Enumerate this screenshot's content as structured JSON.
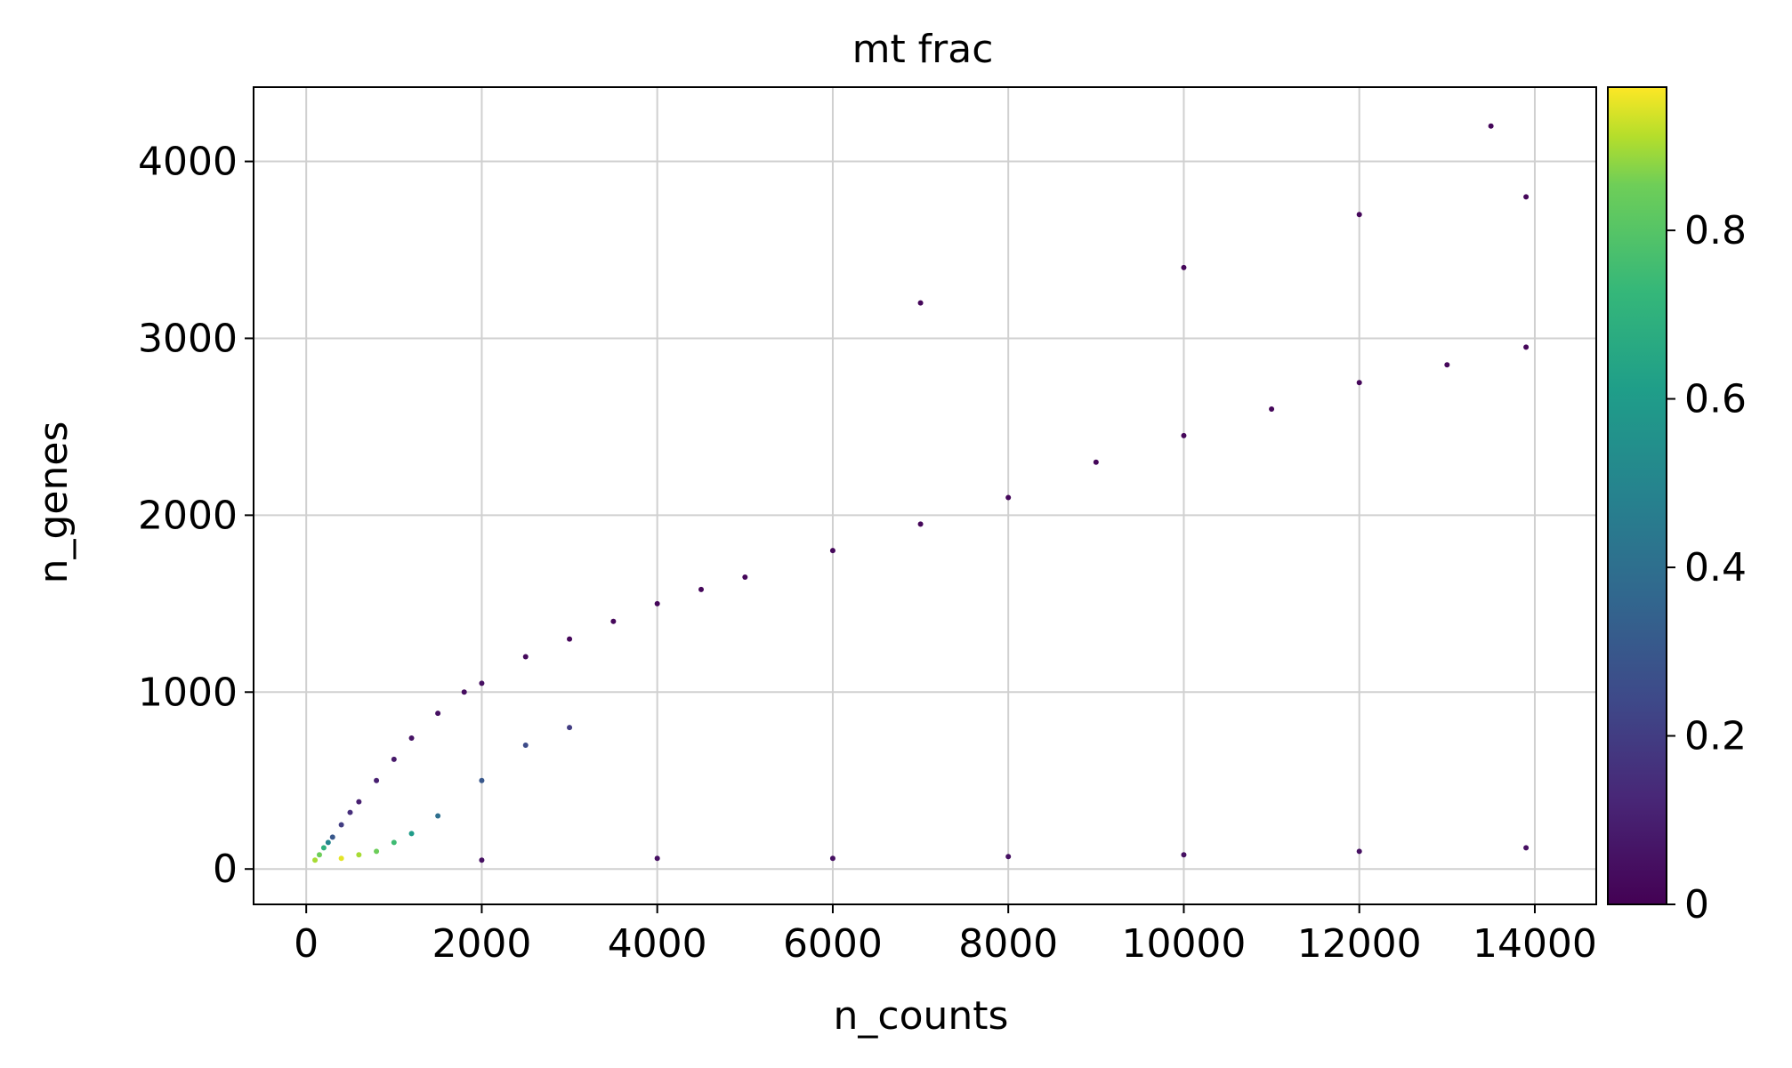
{
  "chart_data": {
    "type": "scatter",
    "title": "mt frac",
    "xlabel": "n_counts",
    "ylabel": "n_genes",
    "xlim": [
      -600,
      14700
    ],
    "ylim": [
      -200,
      4420
    ],
    "xticks": [
      0,
      2000,
      4000,
      6000,
      8000,
      10000,
      12000,
      14000
    ],
    "xtick_labels": [
      "0",
      "2000",
      "4000",
      "6000",
      "8000",
      "10000",
      "12000",
      "14000"
    ],
    "yticks": [
      0,
      1000,
      2000,
      3000,
      4000
    ],
    "ytick_labels": [
      "0",
      "1000",
      "2000",
      "3000",
      "4000"
    ],
    "grid": true,
    "colorbar": {
      "colormap": "viridis",
      "range": [
        0,
        0.97
      ],
      "ticks": [
        0,
        0.2,
        0.4,
        0.6,
        0.8
      ],
      "tick_labels": [
        "0",
        "0.2",
        "0.4",
        "0.6",
        "0.8"
      ]
    },
    "color_variable": "mt frac",
    "series": [
      {
        "points": [
          [
            100,
            50,
            0.9
          ],
          [
            150,
            80,
            0.85
          ],
          [
            200,
            120,
            0.7
          ],
          [
            250,
            150,
            0.5
          ],
          [
            300,
            180,
            0.3
          ],
          [
            400,
            250,
            0.2
          ],
          [
            500,
            320,
            0.15
          ],
          [
            600,
            380,
            0.1
          ],
          [
            800,
            500,
            0.1
          ],
          [
            1000,
            620,
            0.08
          ],
          [
            1200,
            740,
            0.06
          ],
          [
            1500,
            880,
            0.05
          ],
          [
            1800,
            1000,
            0.04
          ],
          [
            2000,
            1050,
            0.05
          ],
          [
            2500,
            1200,
            0.03
          ],
          [
            3000,
            1300,
            0.02
          ],
          [
            3500,
            1400,
            0.02
          ],
          [
            4000,
            1500,
            0.02
          ],
          [
            4500,
            1580,
            0.02
          ],
          [
            5000,
            1650,
            0.02
          ],
          [
            6000,
            1800,
            0.02
          ],
          [
            7000,
            1950,
            0.02
          ],
          [
            8000,
            2100,
            0.02
          ],
          [
            9000,
            2300,
            0.02
          ],
          [
            10000,
            2450,
            0.02
          ],
          [
            11000,
            2600,
            0.02
          ],
          [
            12000,
            2750,
            0.02
          ],
          [
            13000,
            2850,
            0.02
          ],
          [
            13900,
            2950,
            0.02
          ],
          [
            400,
            60,
            0.95
          ],
          [
            600,
            80,
            0.9
          ],
          [
            800,
            100,
            0.85
          ],
          [
            1000,
            150,
            0.75
          ],
          [
            1200,
            200,
            0.6
          ],
          [
            1500,
            300,
            0.4
          ],
          [
            2000,
            500,
            0.3
          ],
          [
            2500,
            700,
            0.25
          ],
          [
            3000,
            800,
            0.2
          ],
          [
            2000,
            50,
            0.05
          ],
          [
            4000,
            60,
            0.05
          ],
          [
            6000,
            60,
            0.05
          ],
          [
            8000,
            70,
            0.05
          ],
          [
            10000,
            80,
            0.05
          ],
          [
            12000,
            100,
            0.05
          ],
          [
            13900,
            120,
            0.05
          ],
          [
            7000,
            3200,
            0.02
          ],
          [
            10000,
            3400,
            0.02
          ],
          [
            12000,
            3700,
            0.02
          ],
          [
            13500,
            4200,
            0.02
          ],
          [
            13900,
            3800,
            0.02
          ]
        ]
      }
    ]
  }
}
